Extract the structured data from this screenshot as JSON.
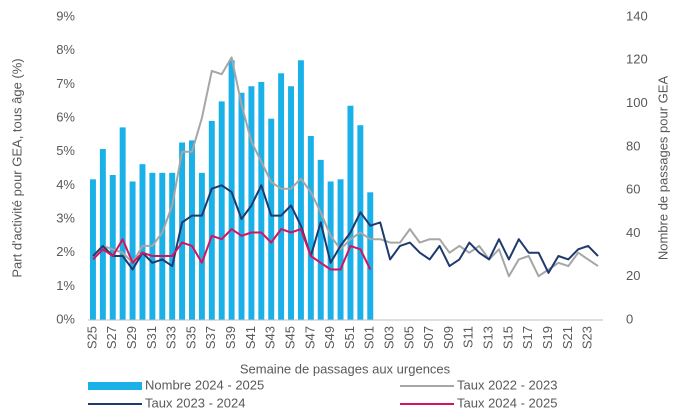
{
  "chart_data": {
    "type": "bar_line",
    "y_label": "Part d'activité pour GEA, tous âge (%)",
    "y2_label": "Nombre de passages pour GEA",
    "x_label": "Semaine de passages aux urgences",
    "categories": [
      "S25",
      null,
      "S27",
      null,
      "S29",
      null,
      "S31",
      null,
      "S33",
      null,
      "S35",
      null,
      "S37",
      null,
      "S39",
      null,
      "S41",
      null,
      "S43",
      null,
      "S45",
      null,
      "S47",
      null,
      "S49",
      null,
      "S51",
      null,
      "S01",
      null,
      "S03",
      null,
      "S05",
      null,
      "S07",
      null,
      "S09",
      null,
      "S11",
      null,
      "S13",
      null,
      "S15",
      null,
      "S17",
      null,
      "S19",
      null,
      "S21",
      null,
      "S23",
      null
    ],
    "ylim": [
      0,
      9
    ],
    "yticks": [
      {
        "value": 0,
        "label": "0%"
      },
      {
        "value": 1,
        "label": "1%"
      },
      {
        "value": 2,
        "label": "2%"
      },
      {
        "value": 3,
        "label": "3%"
      },
      {
        "value": 4,
        "label": "4%"
      },
      {
        "value": 5,
        "label": "5%"
      },
      {
        "value": 6,
        "label": "6%"
      },
      {
        "value": 7,
        "label": "7%"
      },
      {
        "value": 8,
        "label": "8%"
      },
      {
        "value": 9,
        "label": "9%"
      }
    ],
    "y2lim": [
      0,
      140
    ],
    "y2ticks": [
      0,
      20,
      40,
      60,
      80,
      100,
      120,
      140
    ],
    "legend": "bottom",
    "series": [
      {
        "name": "Nombre 2024 - 2025",
        "type": "bar",
        "axis": "y2",
        "color": "#1ab0e8",
        "values": [
          65,
          79,
          67,
          89,
          64,
          72,
          68,
          68,
          68,
          82,
          83,
          68,
          92,
          101,
          120,
          105,
          108,
          110,
          93,
          114,
          108,
          120,
          85,
          74,
          64,
          65,
          99,
          90,
          59,
          null,
          null,
          null,
          null,
          null,
          null,
          null,
          null,
          null,
          null,
          null,
          null,
          null,
          null,
          null,
          null,
          null,
          null,
          null,
          null,
          null,
          null,
          null
        ]
      },
      {
        "name": "Taux 2022 - 2023",
        "type": "line",
        "color": "#a6a6a6",
        "values": [
          1.9,
          2.2,
          2.1,
          2.0,
          1.7,
          2.2,
          2.2,
          2.6,
          3.4,
          5.0,
          5.0,
          6.0,
          7.4,
          7.3,
          7.8,
          6.4,
          5.3,
          4.7,
          4.1,
          3.9,
          3.9,
          4.2,
          3.8,
          3.2,
          2.5,
          2.1,
          2.4,
          2.6,
          2.4,
          2.4,
          2.3,
          2.3,
          2.7,
          2.3,
          2.4,
          2.4,
          2.0,
          2.2,
          2.0,
          2.2,
          1.8,
          2.1,
          1.3,
          1.8,
          1.9,
          1.3,
          1.5,
          1.7,
          1.6,
          2.0,
          1.8,
          1.6
        ]
      },
      {
        "name": "Taux 2023 - 2024",
        "type": "line",
        "color": "#1f3a6e",
        "values": [
          1.9,
          2.2,
          1.9,
          1.9,
          1.5,
          2.0,
          1.7,
          1.8,
          1.6,
          2.9,
          3.1,
          3.1,
          3.9,
          4.0,
          3.8,
          3.0,
          3.4,
          4.0,
          3.1,
          3.1,
          3.4,
          2.8,
          1.9,
          2.9,
          1.7,
          2.2,
          2.6,
          3.2,
          2.8,
          2.9,
          1.8,
          2.2,
          2.3,
          2.0,
          1.8,
          2.2,
          1.6,
          1.8,
          2.3,
          2.0,
          1.8,
          2.4,
          1.8,
          2.4,
          2.0,
          2.0,
          1.4,
          1.9,
          1.8,
          2.1,
          2.2,
          1.9
        ]
      },
      {
        "name": "Taux 2024 - 2025",
        "type": "line",
        "color": "#d6135e",
        "values": [
          1.8,
          2.1,
          1.9,
          2.4,
          1.7,
          2.0,
          1.9,
          1.9,
          1.9,
          2.3,
          2.2,
          1.7,
          2.5,
          2.4,
          2.7,
          2.5,
          2.6,
          2.6,
          2.3,
          2.7,
          2.6,
          2.7,
          1.9,
          1.7,
          1.5,
          1.5,
          2.2,
          2.1,
          1.5,
          null,
          null,
          null,
          null,
          null,
          null,
          null,
          null,
          null,
          null,
          null,
          null,
          null,
          null,
          null,
          null,
          null,
          null,
          null,
          null,
          null,
          null,
          null
        ]
      }
    ]
  }
}
